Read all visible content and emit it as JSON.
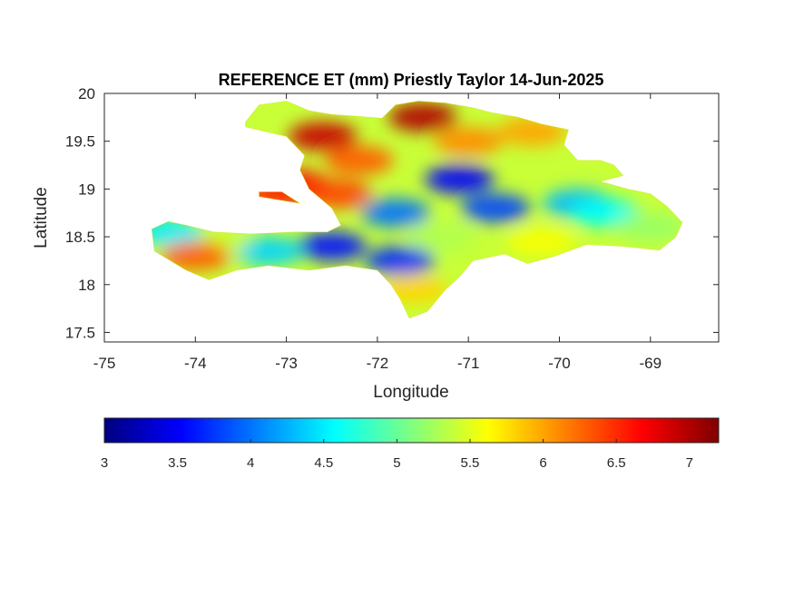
{
  "chart_data": {
    "type": "heatmap",
    "title": "REFERENCE ET (mm) Priestly Taylor 14-Jun-2025",
    "xlabel": "Longitude",
    "ylabel": "Latitude",
    "xlim": [
      -75,
      -68.25
    ],
    "ylim": [
      17.4,
      20
    ],
    "xticks": [
      -75,
      -74,
      -73,
      -72,
      -71,
      -70,
      -69
    ],
    "xtick_labels": [
      "-75",
      "-74",
      "-73",
      "-72",
      "-71",
      "-70",
      "-69"
    ],
    "yticks": [
      17.5,
      18,
      18.5,
      19,
      19.5,
      20
    ],
    "ytick_labels": [
      "17.5",
      "18",
      "18.5",
      "19",
      "19.5",
      "20"
    ],
    "grid": false,
    "colorbar": {
      "orientation": "horizontal",
      "location": "below",
      "colormap": "jet",
      "clim": [
        3,
        7.2
      ],
      "ticks": [
        3,
        3.5,
        4,
        4.5,
        5,
        5.5,
        6,
        6.5,
        7
      ],
      "tick_labels": [
        "3",
        "3.5",
        "4",
        "4.5",
        "5",
        "5.5",
        "6",
        "6.5",
        "7"
      ]
    },
    "regions": [
      {
        "lon": -72.6,
        "lat": 19.55,
        "value": 6.9
      },
      {
        "lon": -71.5,
        "lat": 19.75,
        "value": 7.0
      },
      {
        "lon": -72.9,
        "lat": 19.05,
        "value": 6.7
      },
      {
        "lon": -72.45,
        "lat": 18.95,
        "value": 6.4
      },
      {
        "lon": -72.2,
        "lat": 19.3,
        "value": 6.3
      },
      {
        "lon": -71.0,
        "lat": 19.5,
        "value": 6.1
      },
      {
        "lon": -70.3,
        "lat": 19.6,
        "value": 6.0
      },
      {
        "lon": -71.1,
        "lat": 19.1,
        "value": 3.5
      },
      {
        "lon": -70.7,
        "lat": 18.8,
        "value": 3.8
      },
      {
        "lon": -71.8,
        "lat": 18.75,
        "value": 4.0
      },
      {
        "lon": -72.5,
        "lat": 18.4,
        "value": 3.6
      },
      {
        "lon": -73.2,
        "lat": 18.35,
        "value": 4.4
      },
      {
        "lon": -71.75,
        "lat": 18.25,
        "value": 3.7
      },
      {
        "lon": -69.8,
        "lat": 18.85,
        "value": 4.3
      },
      {
        "lon": -69.5,
        "lat": 18.75,
        "value": 4.6
      },
      {
        "lon": -69.0,
        "lat": 18.6,
        "value": 5.2
      },
      {
        "lon": -70.2,
        "lat": 18.45,
        "value": 5.6
      },
      {
        "lon": -71.3,
        "lat": 18.5,
        "value": 5.3
      },
      {
        "lon": -71.6,
        "lat": 17.95,
        "value": 5.8
      },
      {
        "lon": -73.8,
        "lat": 18.45,
        "value": 5.4
      },
      {
        "lon": -74.3,
        "lat": 18.55,
        "value": 4.5
      },
      {
        "lon": -74.0,
        "lat": 18.3,
        "value": 6.3
      },
      {
        "lon": -73.1,
        "lat": 18.95,
        "value": 6.5
      }
    ],
    "default_value": 5.4
  }
}
